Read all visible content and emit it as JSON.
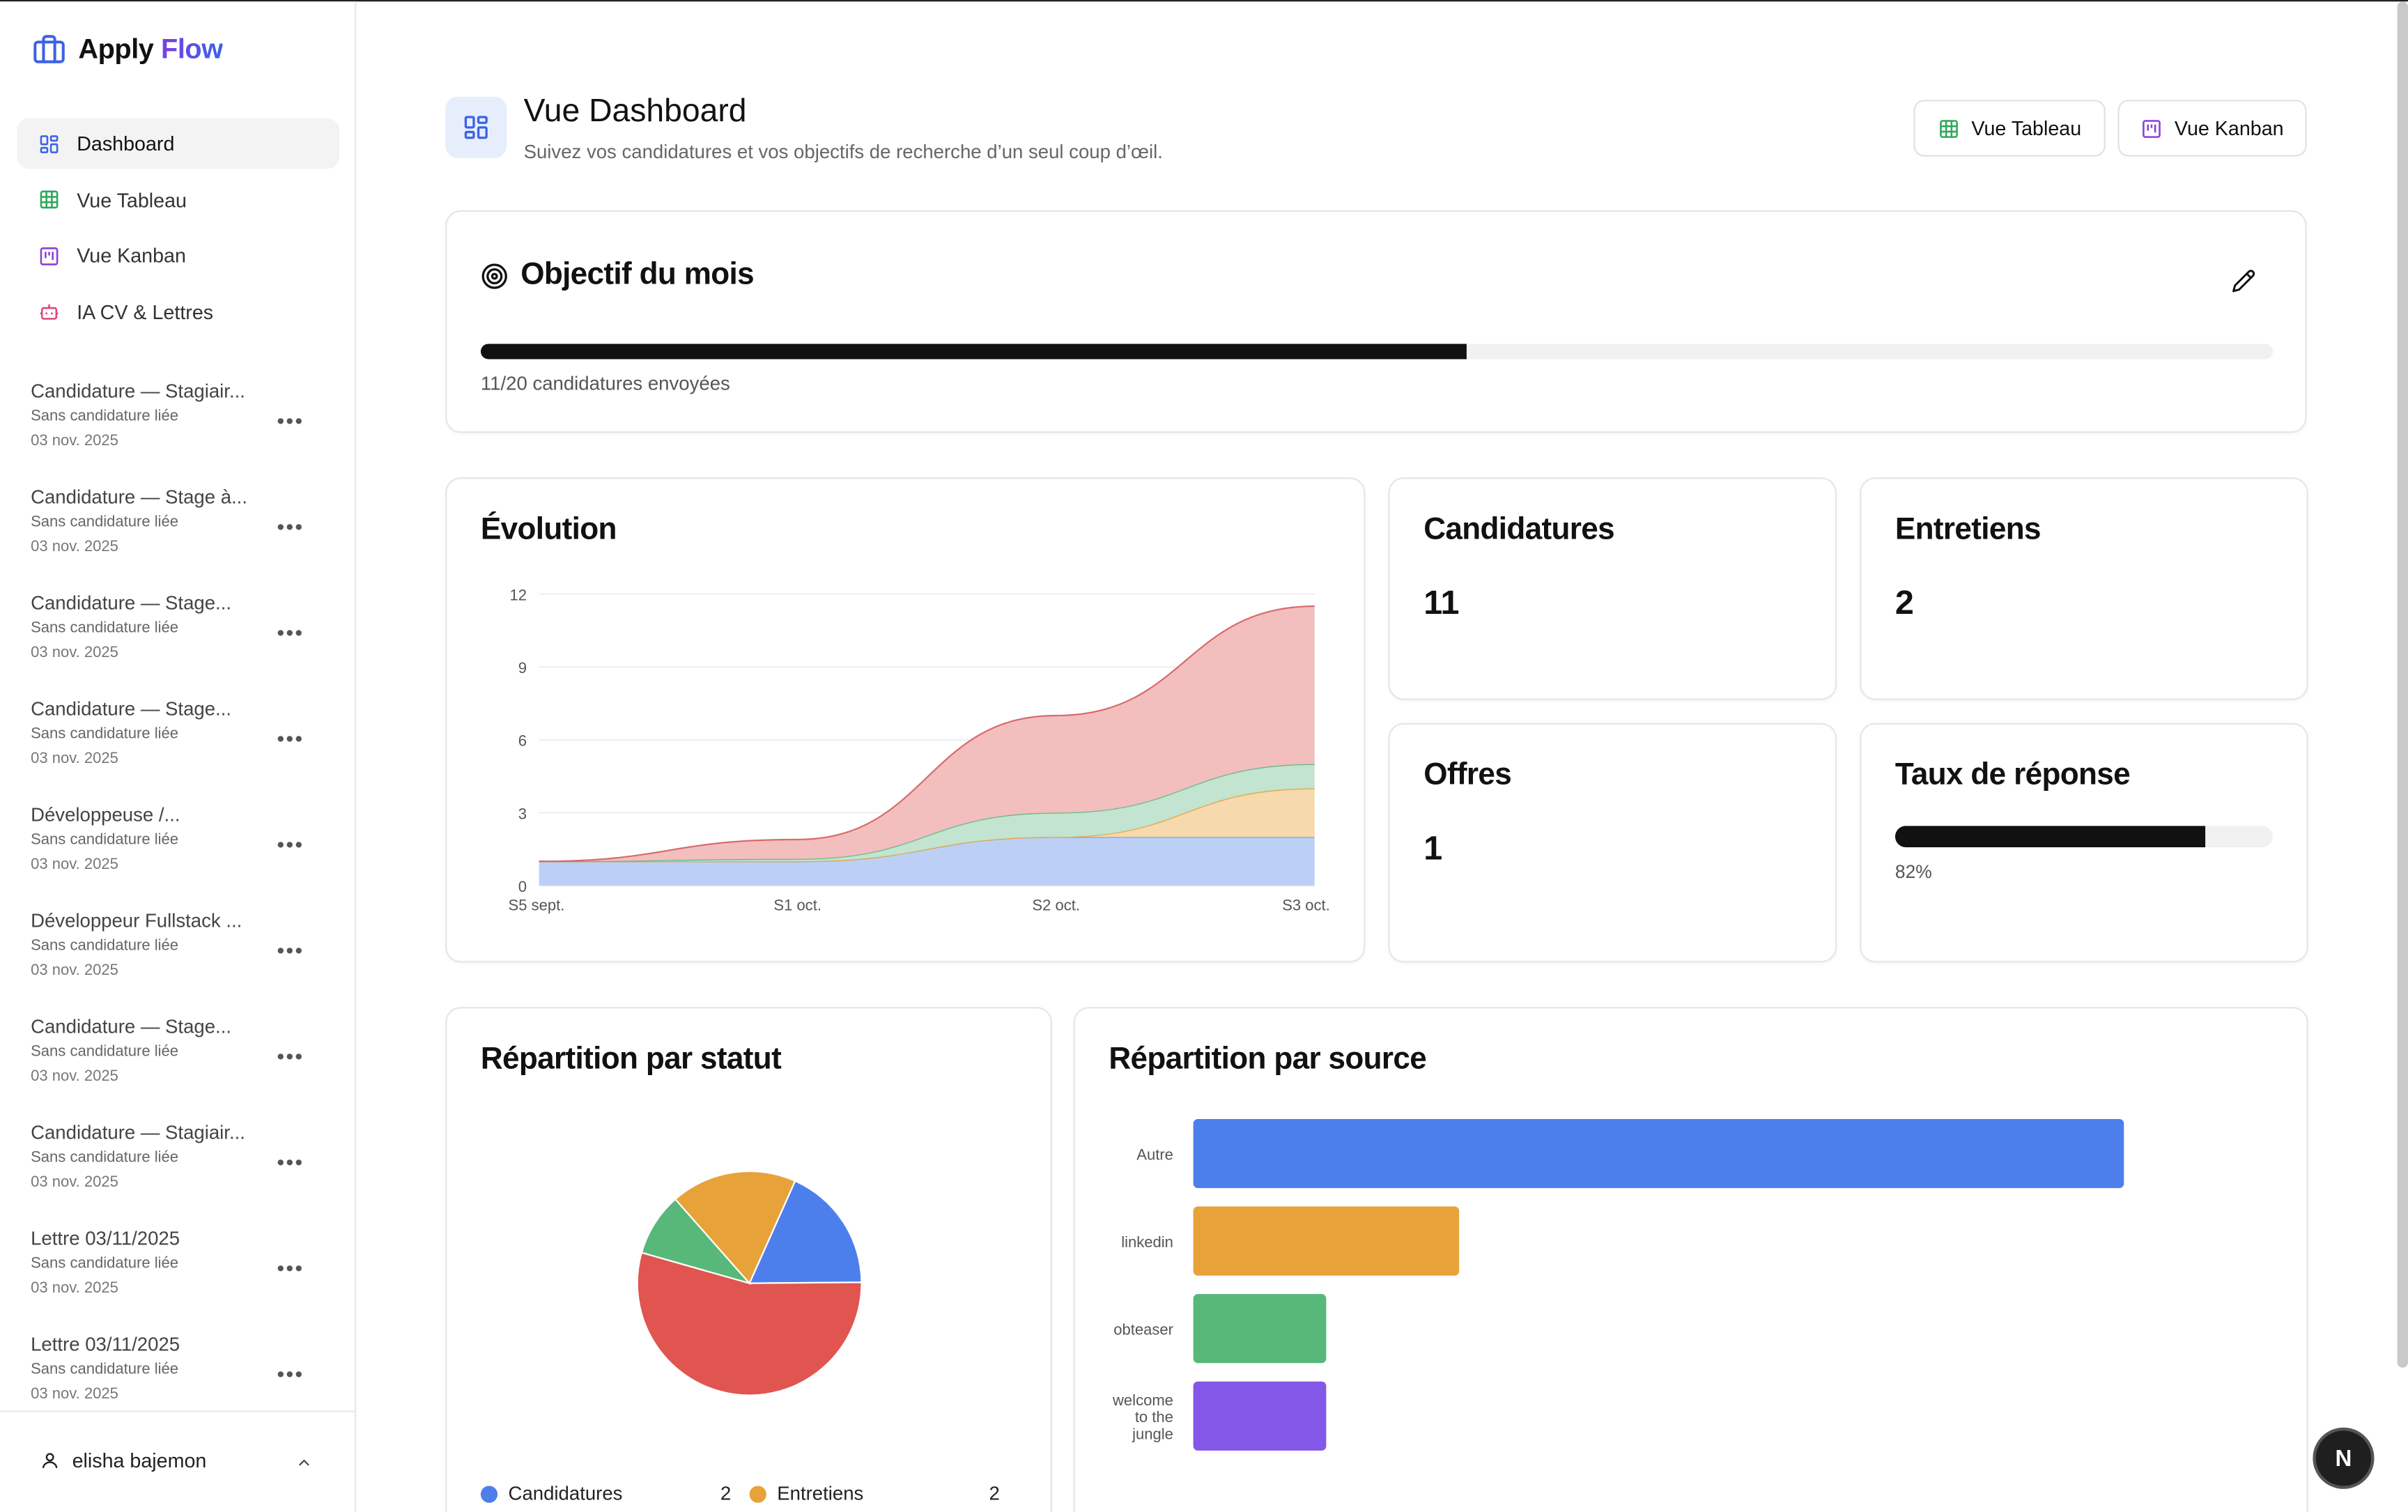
{
  "app": {
    "name_part1": "Apply",
    "name_part2": "Flow"
  },
  "nav": [
    {
      "label": "Dashboard",
      "icon": "dashboard-icon",
      "color": "#3b62e6"
    },
    {
      "label": "Vue Tableau",
      "icon": "table-icon",
      "color": "#2fa85a"
    },
    {
      "label": "Vue Kanban",
      "icon": "kanban-icon",
      "color": "#8b3fd9"
    },
    {
      "label": "IA CV & Lettres",
      "icon": "robot-icon",
      "color": "#e0457b"
    }
  ],
  "recent": [
    {
      "title": "Candidature — Stagiair...",
      "sub": "Sans candidature liée",
      "date": "03 nov. 2025"
    },
    {
      "title": "Candidature — Stage à...",
      "sub": "Sans candidature liée",
      "date": "03 nov. 2025"
    },
    {
      "title": "Candidature — Stage...",
      "sub": "Sans candidature liée",
      "date": "03 nov. 2025"
    },
    {
      "title": "Candidature — Stage...",
      "sub": "Sans candidature liée",
      "date": "03 nov. 2025"
    },
    {
      "title": "Développeuse /...",
      "sub": "Sans candidature liée",
      "date": "03 nov. 2025"
    },
    {
      "title": "Développeur Fullstack ...",
      "sub": "Sans candidature liée",
      "date": "03 nov. 2025"
    },
    {
      "title": "Candidature — Stage...",
      "sub": "Sans candidature liée",
      "date": "03 nov. 2025"
    },
    {
      "title": "Candidature — Stagiair...",
      "sub": "Sans candidature liée",
      "date": "03 nov. 2025"
    },
    {
      "title": "Lettre 03/11/2025",
      "sub": "Sans candidature liée",
      "date": "03 nov. 2025"
    },
    {
      "title": "Lettre 03/11/2025",
      "sub": "Sans candidature liée",
      "date": "03 nov. 2025"
    }
  ],
  "user": {
    "name": "elisha bajemon"
  },
  "header": {
    "title": "Vue Dashboard",
    "subtitle": "Suivez vos candidatures et vos objectifs de recherche d’un seul coup d’œil.",
    "btn_table": "Vue Tableau",
    "btn_kanban": "Vue Kanban"
  },
  "goal": {
    "title": "Objectif du mois",
    "sent": 11,
    "target": 20,
    "label": "11/20 candidatures envoyées"
  },
  "stats": {
    "applications": {
      "label": "Candidatures",
      "value": "11"
    },
    "interviews": {
      "label": "Entretiens",
      "value": "2"
    },
    "offers": {
      "label": "Offres",
      "value": "1"
    },
    "response_rate": {
      "label": "Taux de réponse",
      "value": 82,
      "value_label": "82%"
    }
  },
  "evolution_title": "Évolution",
  "status_title": "Répartition par statut",
  "source_title": "Répartition par source",
  "legend": [
    {
      "label": "Candidatures",
      "value": "2",
      "color": "#4d7fec"
    },
    {
      "label": "Entretiens",
      "value": "2",
      "color": "#e8a23a"
    }
  ],
  "fab_label": "N",
  "chart_data": [
    {
      "type": "area",
      "title": "Évolution",
      "stacked": true,
      "categories": [
        "S5 sept.",
        "S1 oct.",
        "S2 oct.",
        "S3 oct."
      ],
      "ylim": [
        0,
        12
      ],
      "yticks": [
        "0",
        "3",
        "6",
        "9",
        "12"
      ],
      "series": [
        {
          "values": [
            1,
            1,
            2,
            2
          ],
          "color": "#b8cdf5",
          "stroke": "#7a9fe8"
        },
        {
          "values": [
            0,
            0,
            0,
            2
          ],
          "color": "#f6d7a8",
          "stroke": "#e8a23a"
        },
        {
          "values": [
            0,
            0.1,
            1,
            1
          ],
          "color": "#bfe3cd",
          "stroke": "#5cb887"
        },
        {
          "values": [
            0,
            0.8,
            4,
            6.5
          ],
          "color": "#f1bcbb",
          "stroke": "#d96b6b"
        }
      ]
    },
    {
      "type": "pie",
      "title": "Répartition par statut",
      "slices": [
        {
          "value": 2,
          "color": "#4d7fec"
        },
        {
          "value": 6,
          "color": "#e05550"
        },
        {
          "value": 1,
          "color": "#57b87a"
        },
        {
          "value": 2,
          "color": "#e8a23a"
        }
      ]
    },
    {
      "type": "bar",
      "orientation": "horizontal",
      "title": "Répartition par source",
      "categories": [
        "Autre",
        "linkedin",
        "obteaser",
        "welcome to the jungle"
      ],
      "category_lines": [
        [
          "Autre"
        ],
        [
          "linkedin"
        ],
        [
          "obteaser"
        ],
        [
          "welcome",
          "to the",
          "jungle"
        ]
      ],
      "values": [
        7,
        2,
        1,
        1
      ],
      "colors": [
        "#4d7fec",
        "#e8a23a",
        "#57b87a",
        "#8357e8"
      ],
      "xlim": [
        0,
        8.2
      ]
    }
  ]
}
